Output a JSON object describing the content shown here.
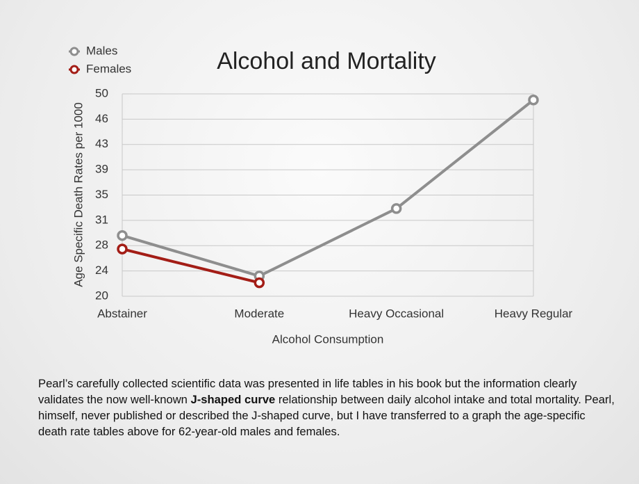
{
  "chart_data": {
    "type": "line",
    "title": "Alcohol and Mortality",
    "ylabel": "Age Specific Death Rates per 1000",
    "xlabel": "Alcohol Consumption",
    "categories": [
      "Abstainer",
      "Moderate",
      "Heavy Occasional",
      "Heavy Regular"
    ],
    "series": [
      {
        "name": "Males",
        "color": "#8e8e8e",
        "values": [
          29.0,
          23.0,
          33.0,
          49.1
        ]
      },
      {
        "name": "Females",
        "color": "#a31d16",
        "values": [
          27.0,
          22.0,
          null,
          null
        ]
      }
    ],
    "ylim": [
      20,
      50
    ],
    "yticks": [
      20,
      {
        "value": 23.75,
        "label": "24"
      },
      {
        "value": 27.5,
        "label": "28"
      },
      {
        "value": 31.25,
        "label": "31"
      },
      35,
      {
        "value": 38.75,
        "label": "39"
      },
      {
        "value": 42.5,
        "label": "43"
      },
      {
        "value": 46.25,
        "label": "46"
      },
      50
    ],
    "grid": true,
    "legend": "top-left"
  },
  "caption": [
    "Pearl’s carefully collected scientific data was presented in life tables in his book but the information clearly validates the now well-known ",
    "J-shaped curve",
    " relationship between daily alcohol intake and total mortality.  Pearl, himself, never published or described the J-shaped curve, but I have transferred to a graph the age-specific death rate tables above for 62-year-old males and females."
  ]
}
